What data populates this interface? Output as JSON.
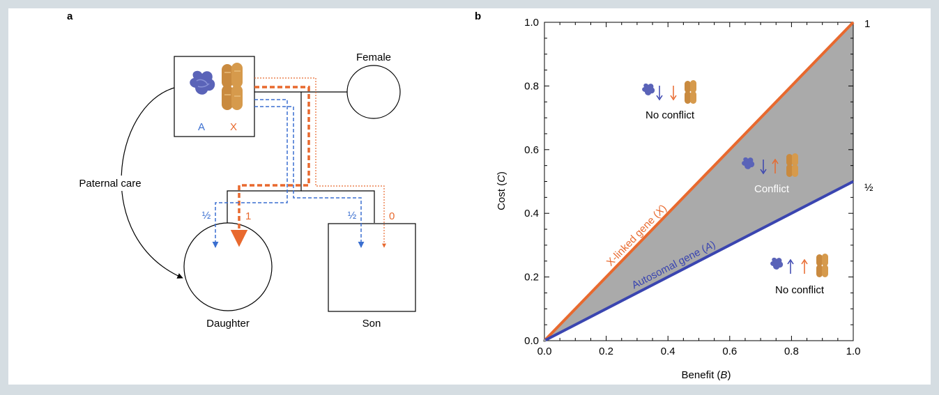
{
  "panel_a": {
    "label": "a",
    "female_label": "Female",
    "daughter_label": "Daughter",
    "son_label": "Son",
    "paternal_care_label": "Paternal care",
    "autosome_letter": "A",
    "x_letter": "X",
    "frac_daughter_autosomal": "½",
    "frac_daughter_x": "1",
    "frac_son_autosomal": "½",
    "frac_son_x": "0"
  },
  "panel_b": {
    "label": "b",
    "xlabel_prefix": "Benefit (",
    "xlabel_var": "B",
    "xlabel_suffix": ")",
    "ylabel_prefix": "Cost (",
    "ylabel_var": "C",
    "ylabel_suffix": ")",
    "x_ticks": [
      "0.0",
      "0.2",
      "0.4",
      "0.6",
      "0.8",
      "1.0"
    ],
    "y_ticks": [
      "0.0",
      "0.2",
      "0.4",
      "0.6",
      "0.8",
      "1.0"
    ],
    "right_axis_labels": [
      "1",
      "½"
    ],
    "x_linked_line_label_prefix": "X-linked gene (",
    "x_linked_line_label_var": "X",
    "x_linked_line_label_suffix": ")",
    "autosomal_line_label_prefix": "Autosomal gene (",
    "autosomal_line_label_var": "A",
    "autosomal_line_label_suffix": ")",
    "region_top_label": "No conflict",
    "region_middle_label": "Conflict",
    "region_bottom_label": "No conflict"
  },
  "colors": {
    "autosomal": "#3a45b0",
    "x_linked": "#e8692e",
    "conflict_fill": "#aaaaaa",
    "background": "#d5dde2"
  },
  "chart_data": {
    "type": "line",
    "xlabel": "Benefit (B)",
    "ylabel": "Cost (C)",
    "xlim": [
      0,
      1
    ],
    "ylim": [
      0,
      1
    ],
    "x_ticks": [
      0,
      0.2,
      0.4,
      0.6,
      0.8,
      1.0
    ],
    "y_ticks": [
      0,
      0.2,
      0.4,
      0.6,
      0.8,
      1.0
    ],
    "series": [
      {
        "name": "X-linked gene (X)",
        "x": [
          0,
          1
        ],
        "y": [
          0,
          1
        ],
        "color": "#e8692e"
      },
      {
        "name": "Autosomal gene (A)",
        "x": [
          0,
          1
        ],
        "y": [
          0,
          0.5
        ],
        "color": "#3a45b0"
      }
    ],
    "shaded_region": {
      "label": "Conflict",
      "between": [
        "Autosomal gene (A)",
        "X-linked gene (X)"
      ],
      "color": "#aaaaaa"
    },
    "annotations": [
      {
        "text": "No conflict",
        "region": "above X-linked line",
        "arrows": [
          "down",
          "down"
        ]
      },
      {
        "text": "Conflict",
        "region": "between lines",
        "arrows": [
          "down",
          "up"
        ]
      },
      {
        "text": "No conflict",
        "region": "below autosomal line",
        "arrows": [
          "up",
          "up"
        ]
      }
    ],
    "grid": false
  }
}
